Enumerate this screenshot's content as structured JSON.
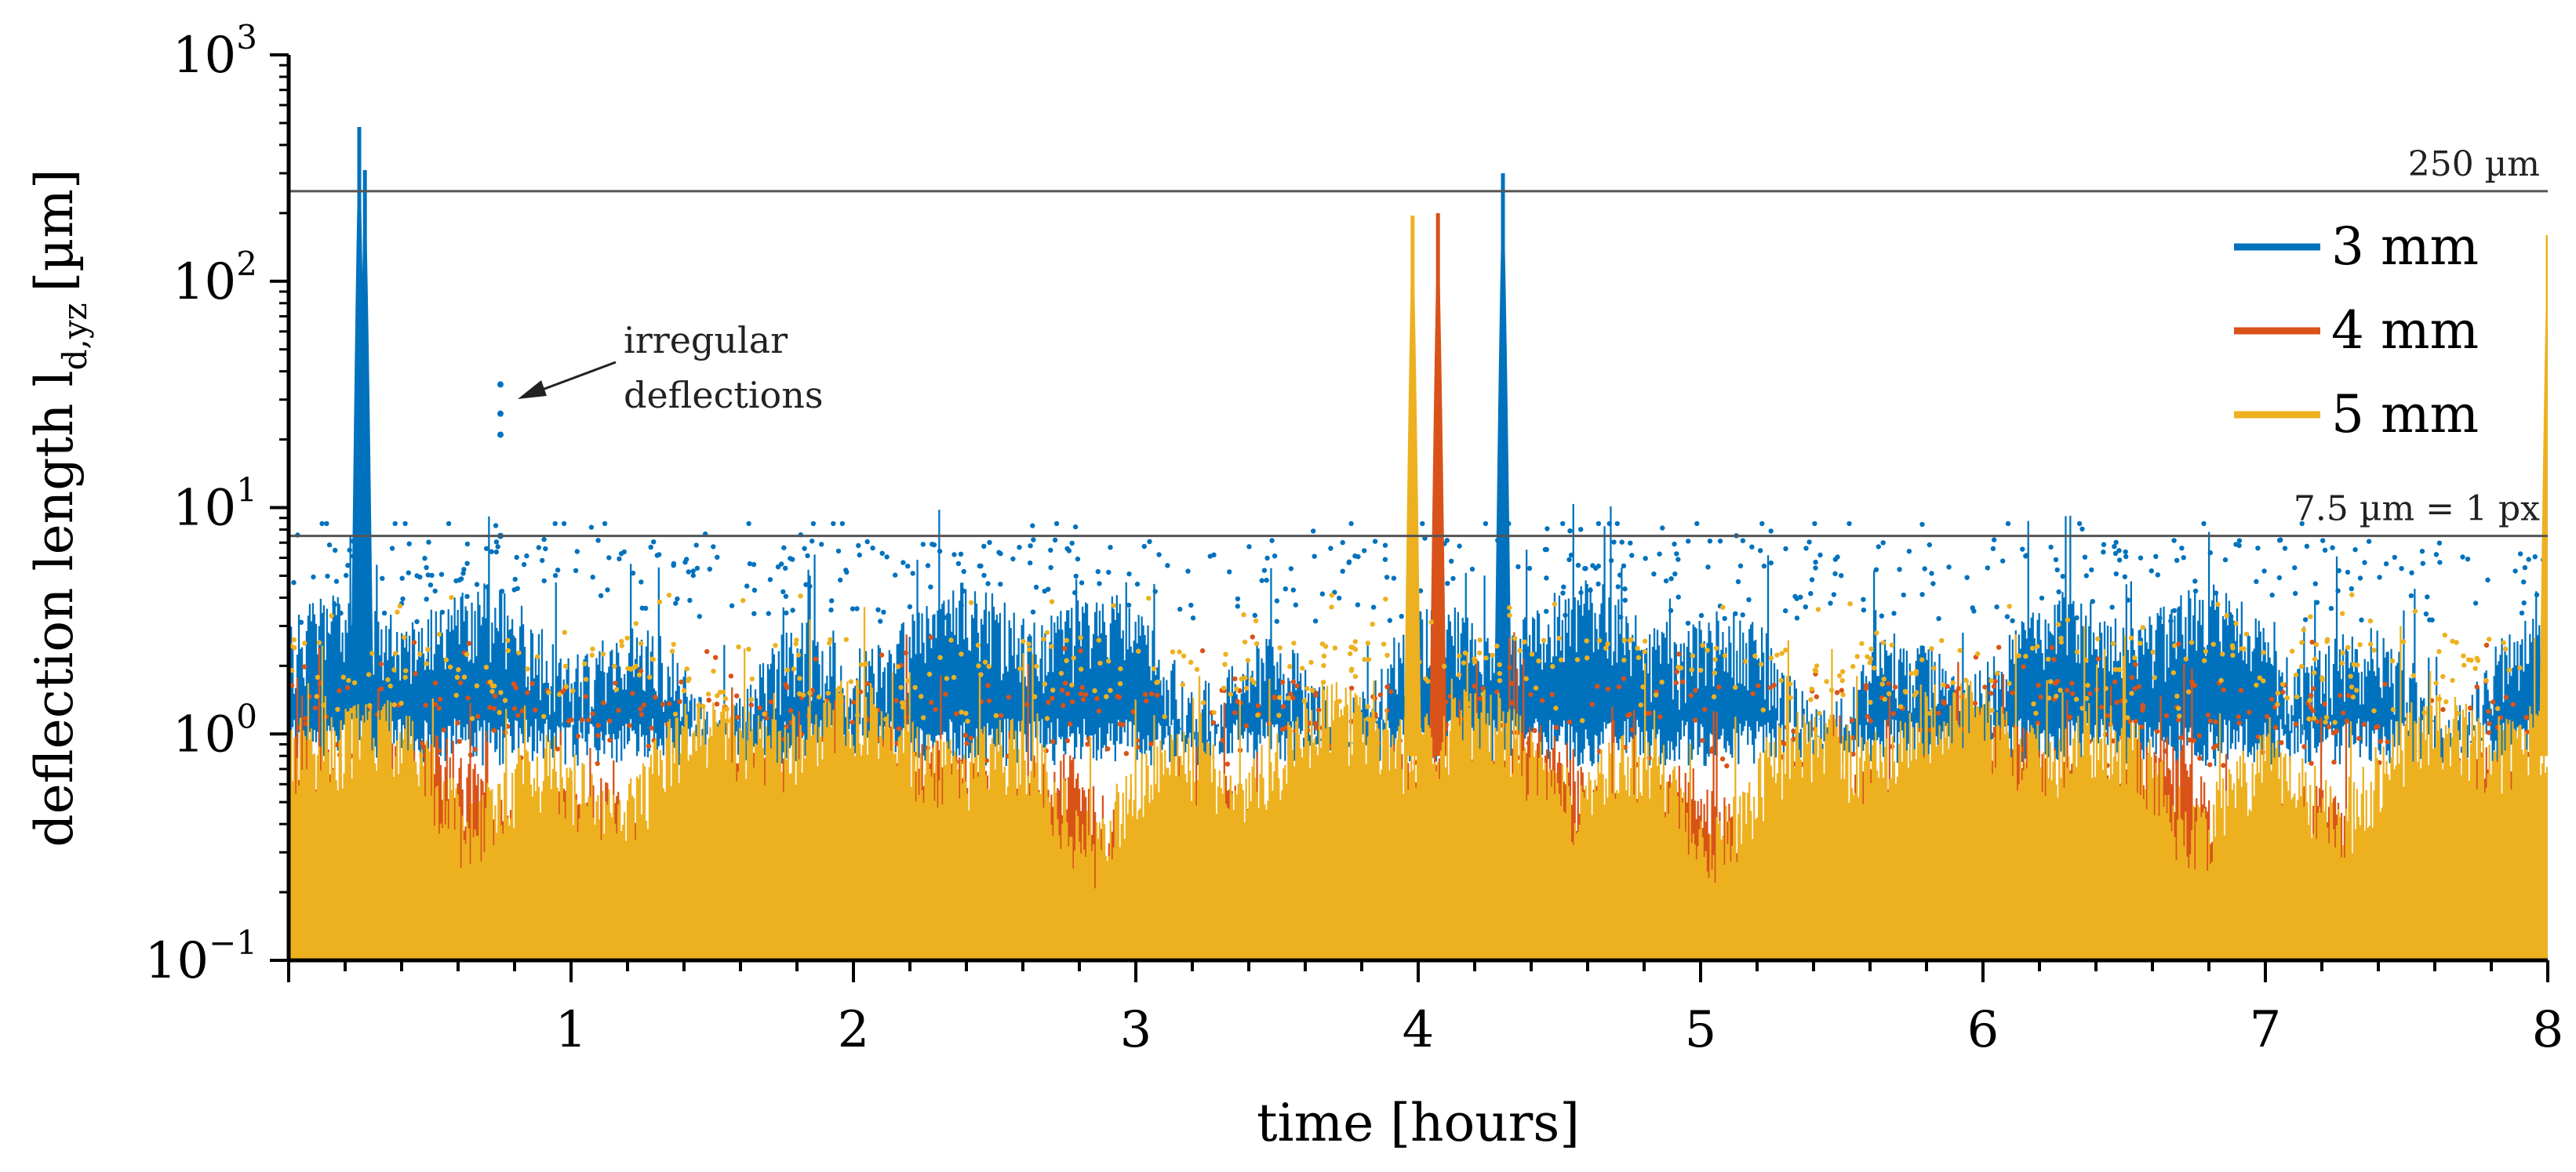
{
  "chart_data": {
    "type": "scatter",
    "title": "",
    "xlabel": "time [hours]",
    "ylabel": {
      "main": "deflection length l",
      "sub": "d,yz",
      "unit": "[µm]"
    },
    "xlim": [
      0,
      8
    ],
    "ylim": [
      0.1,
      1000
    ],
    "yscale": "log",
    "x_ticks": [
      1,
      2,
      3,
      4,
      5,
      6,
      7,
      8
    ],
    "y_ticks": [
      {
        "value": 0.1,
        "base": "10",
        "exp": "−1"
      },
      {
        "value": 1,
        "base": "10",
        "exp": "0"
      },
      {
        "value": 10,
        "base": "10",
        "exp": "1"
      },
      {
        "value": 100,
        "base": "10",
        "exp": "2"
      },
      {
        "value": 1000,
        "base": "10",
        "exp": "3"
      }
    ],
    "reference_lines": [
      {
        "value": 250,
        "label": "250 µm"
      },
      {
        "value": 7.5,
        "label": "7.5 µm = 1 px"
      }
    ],
    "annotation": {
      "line1": "irregular",
      "line2": "deflections",
      "target_x": 0.77,
      "target_y": 30
    },
    "series": [
      {
        "name": "3 mm",
        "color": "#0072BD",
        "baseline": 1.9,
        "noise_floor": 0.9,
        "spikes": [
          {
            "x": 0.25,
            "peak": 480
          },
          {
            "x": 0.27,
            "peak": 310
          },
          {
            "x": 4.3,
            "peak": 300
          }
        ],
        "outliers": [
          {
            "x": 0.75,
            "y": 35
          },
          {
            "x": 0.75,
            "y": 26
          },
          {
            "x": 0.75,
            "y": 21
          },
          {
            "x": 0.75,
            "y": 7.5
          }
        ]
      },
      {
        "name": "4 mm",
        "color": "#D95319",
        "baseline": 0.45,
        "noise_floor": 0.1,
        "spikes": [
          {
            "x": 4.07,
            "peak": 200
          },
          {
            "x": 8.0,
            "peak": 65
          }
        ]
      },
      {
        "name": "5 mm",
        "color": "#EDB120",
        "baseline": 0.7,
        "noise_floor": 0.1,
        "spikes": [
          {
            "x": 3.98,
            "peak": 195
          },
          {
            "x": 8.0,
            "peak": 160
          }
        ]
      }
    ],
    "legend_position": "top-right"
  }
}
